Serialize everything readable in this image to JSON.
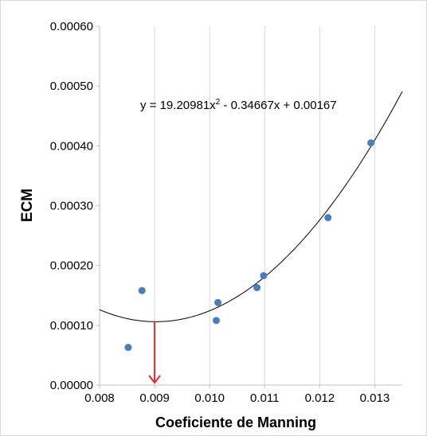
{
  "chart_data": {
    "type": "scatter",
    "title": "",
    "xlabel": "Coeficiente de Manning",
    "ylabel": "ECM",
    "xlim": [
      0.008,
      0.0135
    ],
    "ylim": [
      0,
      0.0006
    ],
    "x_ticks": [
      "0.008",
      "0.009",
      "0.010",
      "0.011",
      "0.012",
      "0.013"
    ],
    "y_ticks": [
      "0.00000",
      "0.00010",
      "0.00020",
      "0.00030",
      "0.00040",
      "0.00050",
      "0.00060"
    ],
    "grid": "vertical",
    "points": [
      {
        "x": 0.00852,
        "y": 6.3e-05
      },
      {
        "x": 0.00877,
        "y": 0.000158
      },
      {
        "x": 0.01012,
        "y": 0.000108
      },
      {
        "x": 0.01015,
        "y": 0.000138
      },
      {
        "x": 0.01086,
        "y": 0.000163
      },
      {
        "x": 0.01098,
        "y": 0.000183
      },
      {
        "x": 0.01215,
        "y": 0.00028
      },
      {
        "x": 0.01293,
        "y": 0.000405
      }
    ],
    "trendline": {
      "type": "polynomial",
      "coefficients": [
        19.20981,
        -0.34667,
        0.00167
      ],
      "equation_prefix": "y = 19.20981x",
      "equation_exp": "2",
      "equation_suffix": " - 0.34667x + 0.00167"
    },
    "annotation": {
      "type": "arrow",
      "x": 0.009,
      "y_from": 0.000107,
      "y_to": 0.0,
      "color": "#e0282e"
    },
    "colors": {
      "points": "#4a7ebb",
      "trendline": "#000000",
      "grid": "#d9d9d9",
      "arrow": "#e0282e"
    }
  }
}
